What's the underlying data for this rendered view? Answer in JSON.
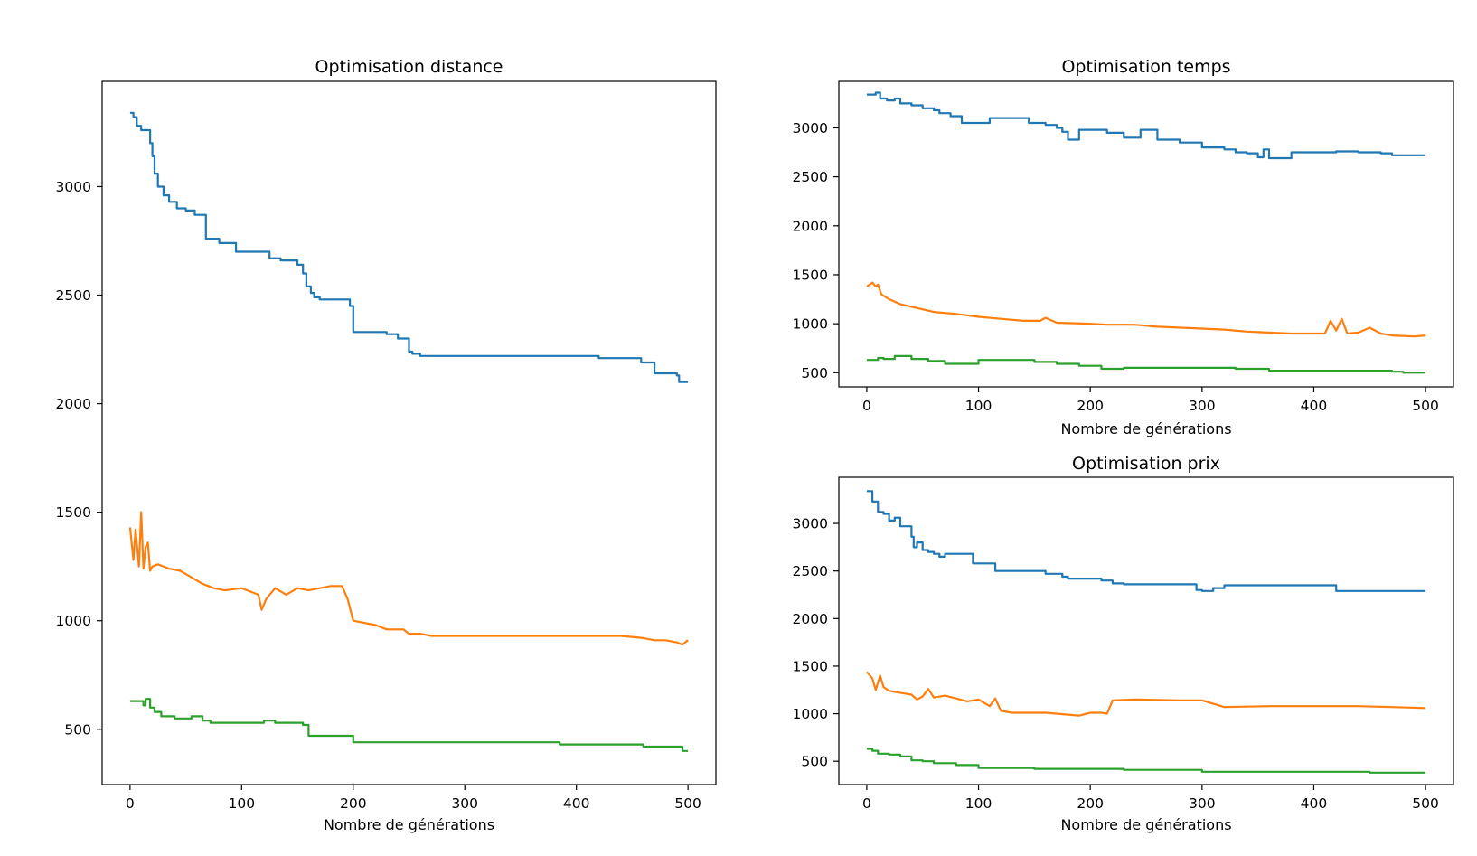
{
  "colors": {
    "series1": "#1f77b4",
    "series2": "#ff7f0e",
    "series3": "#2ca02c",
    "axis": "#000000"
  },
  "chart_data": [
    {
      "id": "distance",
      "type": "line",
      "title": "Optimisation distance",
      "xlabel": "Nombre de générations",
      "ylabel": "",
      "xlim": [
        -25,
        525
      ],
      "ylim": [
        245,
        3485
      ],
      "xticks": [
        0,
        100,
        200,
        300,
        400,
        500
      ],
      "yticks": [
        500,
        1000,
        1500,
        2000,
        2500,
        3000
      ],
      "grid": false,
      "series": [
        {
          "color": "#1f77b4",
          "style": "step",
          "x": [
            0,
            3,
            6,
            10,
            18,
            20,
            22,
            25,
            30,
            35,
            42,
            50,
            58,
            68,
            80,
            95,
            110,
            125,
            135,
            150,
            155,
            158,
            162,
            165,
            170,
            190,
            197,
            200,
            230,
            240,
            250,
            253,
            260,
            300,
            340,
            380,
            420,
            450,
            458,
            470,
            488,
            490,
            492,
            500
          ],
          "values": [
            3340,
            3320,
            3280,
            3260,
            3200,
            3140,
            3060,
            3000,
            2960,
            2930,
            2900,
            2890,
            2870,
            2760,
            2740,
            2700,
            2700,
            2670,
            2660,
            2640,
            2600,
            2540,
            2510,
            2490,
            2480,
            2480,
            2450,
            2330,
            2320,
            2300,
            2240,
            2230,
            2220,
            2220,
            2220,
            2220,
            2210,
            2210,
            2190,
            2140,
            2140,
            2130,
            2100,
            2100
          ]
        },
        {
          "color": "#ff7f0e",
          "style": "noisy",
          "x": [
            0,
            3,
            5,
            8,
            10,
            12,
            14,
            16,
            18,
            20,
            25,
            35,
            45,
            55,
            65,
            75,
            85,
            100,
            115,
            118,
            122,
            130,
            140,
            150,
            160,
            170,
            180,
            190,
            195,
            200,
            210,
            220,
            230,
            245,
            250,
            260,
            270,
            300,
            320,
            340,
            350,
            360,
            380,
            400,
            420,
            440,
            460,
            470,
            480,
            490,
            495,
            500
          ],
          "values": [
            1430,
            1280,
            1420,
            1250,
            1500,
            1240,
            1340,
            1360,
            1230,
            1250,
            1260,
            1240,
            1230,
            1200,
            1170,
            1150,
            1140,
            1150,
            1120,
            1050,
            1100,
            1150,
            1120,
            1150,
            1140,
            1150,
            1160,
            1160,
            1100,
            1000,
            990,
            980,
            960,
            960,
            940,
            940,
            930,
            930,
            930,
            930,
            930,
            930,
            930,
            930,
            930,
            930,
            920,
            910,
            910,
            900,
            890,
            910
          ]
        },
        {
          "color": "#2ca02c",
          "style": "step",
          "x": [
            0,
            8,
            12,
            14,
            18,
            22,
            28,
            40,
            55,
            65,
            72,
            85,
            100,
            115,
            120,
            130,
            155,
            160,
            195,
            200,
            220,
            230,
            300,
            380,
            385,
            400,
            450,
            460,
            490,
            495,
            500
          ],
          "values": [
            630,
            630,
            610,
            640,
            600,
            580,
            560,
            550,
            560,
            540,
            530,
            530,
            530,
            530,
            540,
            530,
            520,
            470,
            470,
            440,
            440,
            440,
            440,
            440,
            430,
            430,
            430,
            420,
            420,
            400,
            400
          ]
        }
      ]
    },
    {
      "id": "temps",
      "type": "line",
      "title": "Optimisation temps",
      "xlabel": "Nombre de générations",
      "ylabel": "",
      "xlim": [
        -25,
        525
      ],
      "ylim": [
        355,
        3475
      ],
      "xticks": [
        0,
        100,
        200,
        300,
        400,
        500
      ],
      "yticks": [
        500,
        1000,
        1500,
        2000,
        2500,
        3000
      ],
      "grid": false,
      "series": [
        {
          "color": "#1f77b4",
          "style": "step",
          "x": [
            0,
            8,
            12,
            18,
            25,
            30,
            40,
            50,
            60,
            65,
            75,
            85,
            100,
            110,
            130,
            145,
            160,
            170,
            175,
            180,
            190,
            200,
            215,
            230,
            245,
            260,
            280,
            300,
            320,
            330,
            340,
            350,
            355,
            360,
            380,
            400,
            420,
            440,
            460,
            470,
            500
          ],
          "values": [
            3340,
            3360,
            3300,
            3280,
            3300,
            3250,
            3230,
            3200,
            3180,
            3150,
            3120,
            3050,
            3050,
            3100,
            3100,
            3050,
            3030,
            3000,
            2960,
            2880,
            2980,
            2980,
            2950,
            2900,
            2980,
            2880,
            2850,
            2800,
            2780,
            2750,
            2740,
            2700,
            2780,
            2690,
            2750,
            2750,
            2760,
            2750,
            2740,
            2720,
            2720
          ]
        },
        {
          "color": "#ff7f0e",
          "style": "noisy",
          "x": [
            0,
            5,
            8,
            10,
            13,
            20,
            30,
            45,
            60,
            80,
            100,
            120,
            140,
            155,
            160,
            170,
            200,
            215,
            240,
            260,
            300,
            320,
            340,
            380,
            410,
            415,
            420,
            425,
            430,
            440,
            450,
            460,
            470,
            490,
            500
          ],
          "values": [
            1380,
            1420,
            1380,
            1400,
            1300,
            1250,
            1200,
            1160,
            1120,
            1100,
            1070,
            1050,
            1030,
            1030,
            1060,
            1010,
            1000,
            990,
            990,
            970,
            950,
            940,
            920,
            900,
            900,
            1030,
            930,
            1050,
            900,
            910,
            960,
            900,
            880,
            870,
            880
          ]
        },
        {
          "color": "#2ca02c",
          "style": "step",
          "x": [
            0,
            10,
            15,
            25,
            40,
            55,
            70,
            100,
            130,
            150,
            170,
            190,
            210,
            230,
            260,
            300,
            330,
            350,
            360,
            400,
            440,
            460,
            470,
            480,
            500
          ],
          "values": [
            630,
            650,
            640,
            670,
            640,
            620,
            590,
            630,
            630,
            610,
            590,
            570,
            540,
            550,
            550,
            550,
            540,
            540,
            520,
            520,
            520,
            520,
            510,
            500,
            500
          ]
        }
      ]
    },
    {
      "id": "prix",
      "type": "line",
      "title": "Optimisation prix",
      "xlabel": "Nombre de générations",
      "ylabel": "",
      "xlim": [
        -25,
        525
      ],
      "ylim": [
        255,
        3485
      ],
      "xticks": [
        0,
        100,
        200,
        300,
        400,
        500
      ],
      "yticks": [
        500,
        1000,
        1500,
        2000,
        2500,
        3000
      ],
      "grid": false,
      "series": [
        {
          "color": "#1f77b4",
          "style": "step",
          "x": [
            0,
            5,
            10,
            15,
            20,
            25,
            30,
            40,
            42,
            45,
            50,
            55,
            60,
            65,
            70,
            80,
            95,
            105,
            115,
            130,
            160,
            175,
            180,
            195,
            210,
            220,
            230,
            260,
            290,
            295,
            300,
            310,
            320,
            360,
            400,
            418,
            420,
            500
          ],
          "values": [
            3340,
            3230,
            3120,
            3100,
            3030,
            3060,
            2970,
            2860,
            2750,
            2800,
            2720,
            2700,
            2680,
            2650,
            2680,
            2680,
            2580,
            2580,
            2500,
            2500,
            2470,
            2440,
            2420,
            2420,
            2400,
            2370,
            2360,
            2360,
            2360,
            2300,
            2290,
            2320,
            2350,
            2350,
            2350,
            2350,
            2290,
            2290
          ]
        },
        {
          "color": "#ff7f0e",
          "style": "noisy",
          "x": [
            0,
            5,
            8,
            12,
            15,
            20,
            25,
            30,
            40,
            45,
            50,
            55,
            60,
            70,
            80,
            90,
            100,
            110,
            115,
            120,
            130,
            160,
            180,
            190,
            200,
            210,
            215,
            220,
            240,
            280,
            300,
            320,
            360,
            400,
            440,
            470,
            500
          ],
          "values": [
            1440,
            1370,
            1250,
            1400,
            1280,
            1240,
            1230,
            1220,
            1200,
            1150,
            1180,
            1260,
            1170,
            1190,
            1160,
            1130,
            1150,
            1080,
            1160,
            1030,
            1010,
            1010,
            990,
            980,
            1010,
            1010,
            1000,
            1140,
            1150,
            1140,
            1140,
            1070,
            1080,
            1080,
            1080,
            1070,
            1060
          ]
        },
        {
          "color": "#2ca02c",
          "style": "step",
          "x": [
            0,
            5,
            10,
            20,
            30,
            40,
            50,
            60,
            80,
            100,
            120,
            150,
            200,
            230,
            260,
            290,
            300,
            350,
            400,
            450,
            500
          ],
          "values": [
            630,
            610,
            580,
            570,
            550,
            510,
            500,
            480,
            460,
            430,
            430,
            420,
            420,
            410,
            410,
            410,
            390,
            390,
            390,
            380,
            380
          ]
        }
      ]
    }
  ]
}
